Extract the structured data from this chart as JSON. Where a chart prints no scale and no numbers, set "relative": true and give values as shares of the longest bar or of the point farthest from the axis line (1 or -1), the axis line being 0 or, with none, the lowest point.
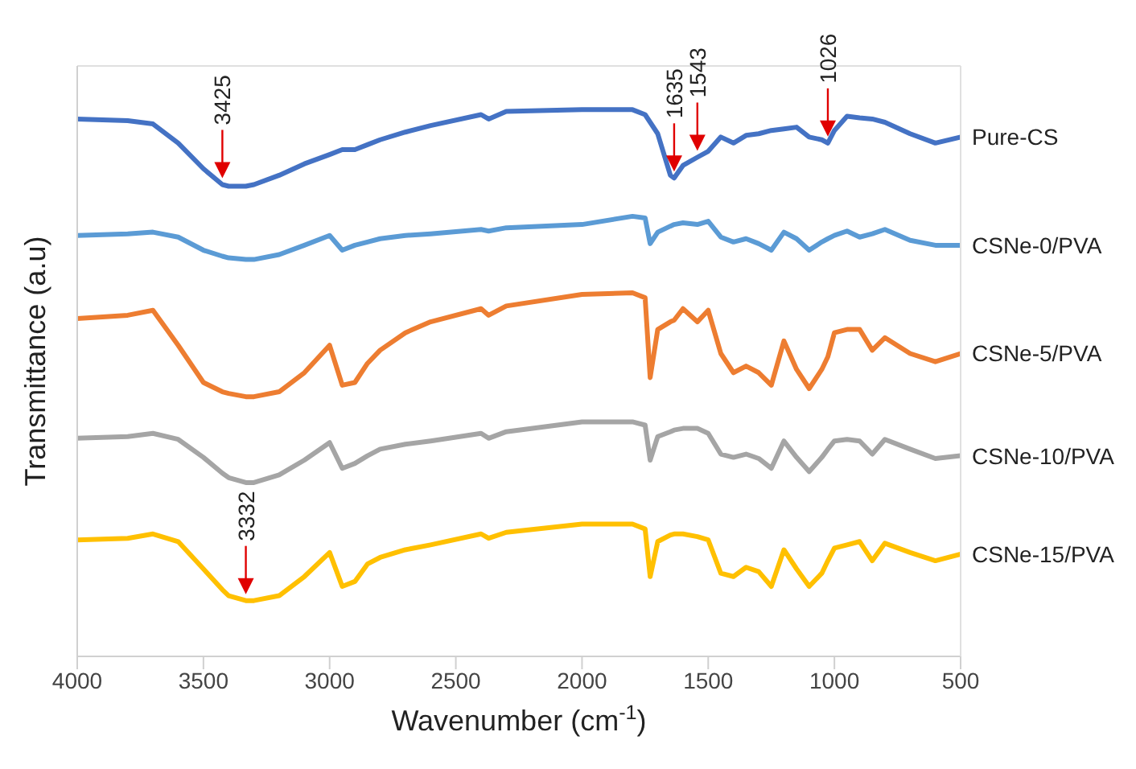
{
  "chart_data": {
    "type": "line",
    "relative": true,
    "xlabel": "Wavenumber (cm$^{-1}$)",
    "ylabel": "Transmittance (a.u)",
    "xlim": [
      4000,
      500
    ],
    "xticks": [
      4000,
      3500,
      3000,
      2500,
      2000,
      1500,
      1000,
      500
    ],
    "grid": false,
    "marker": "none",
    "x": [
      4000,
      3800,
      3700,
      3600,
      3500,
      3425,
      3400,
      3332,
      3300,
      3200,
      3100,
      3000,
      2950,
      2900,
      2850,
      2800,
      2700,
      2600,
      2400,
      2370,
      2300,
      2000,
      1800,
      1750,
      1730,
      1700,
      1650,
      1635,
      1600,
      1543,
      1500,
      1450,
      1400,
      1350,
      1300,
      1250,
      1200,
      1150,
      1100,
      1050,
      1026,
      1000,
      950,
      900,
      850,
      800,
      700,
      600,
      500
    ],
    "series": [
      {
        "name": "Pure-CS",
        "color": "#4472c4",
        "values": [
          0.983,
          0.98,
          0.974,
          0.939,
          0.892,
          0.863,
          0.86,
          0.86,
          0.863,
          0.88,
          0.901,
          0.918,
          0.927,
          0.927,
          0.936,
          0.945,
          0.959,
          0.971,
          0.991,
          0.983,
          0.997,
          1,
          1,
          0.991,
          0.977,
          0.956,
          0.88,
          0.875,
          0.898,
          0.913,
          0.924,
          0.95,
          0.939,
          0.953,
          0.956,
          0.962,
          0.965,
          0.968,
          0.95,
          0.945,
          0.939,
          0.962,
          0.988,
          0.985,
          0.983,
          0.977,
          0.956,
          0.939,
          0.95
        ]
      },
      {
        "name": "CSNe-0/PVA",
        "color": "#5b9bd5",
        "values": [
          0.77,
          0.773,
          0.776,
          0.767,
          0.743,
          0.732,
          0.729,
          0.726,
          0.726,
          0.735,
          0.752,
          0.77,
          0.743,
          0.752,
          0.758,
          0.764,
          0.77,
          0.773,
          0.781,
          0.778,
          0.784,
          0.79,
          0.805,
          0.802,
          0.755,
          0.776,
          0.787,
          0.79,
          0.793,
          0.79,
          0.796,
          0.767,
          0.758,
          0.764,
          0.755,
          0.743,
          0.776,
          0.764,
          0.743,
          0.758,
          0.764,
          0.77,
          0.778,
          0.767,
          0.773,
          0.781,
          0.761,
          0.752,
          0.752
        ]
      },
      {
        "name": "CSNe-5/PVA",
        "color": "#ed7d31",
        "values": [
          0.618,
          0.624,
          0.633,
          0.569,
          0.501,
          0.484,
          0.481,
          0.475,
          0.475,
          0.484,
          0.519,
          0.569,
          0.496,
          0.501,
          0.536,
          0.56,
          0.592,
          0.612,
          0.636,
          0.624,
          0.641,
          0.662,
          0.665,
          0.656,
          0.51,
          0.598,
          0.612,
          0.615,
          0.636,
          0.612,
          0.633,
          0.554,
          0.519,
          0.531,
          0.519,
          0.496,
          0.577,
          0.525,
          0.49,
          0.525,
          0.548,
          0.592,
          0.598,
          0.598,
          0.56,
          0.583,
          0.554,
          0.539,
          0.554
        ]
      },
      {
        "name": "CSNe-10/PVA",
        "color": "#a5a5a5",
        "values": [
          0.399,
          0.402,
          0.408,
          0.397,
          0.364,
          0.335,
          0.327,
          0.318,
          0.318,
          0.332,
          0.359,
          0.391,
          0.344,
          0.353,
          0.367,
          0.379,
          0.388,
          0.394,
          0.408,
          0.399,
          0.411,
          0.429,
          0.429,
          0.423,
          0.359,
          0.402,
          0.411,
          0.414,
          0.417,
          0.417,
          0.408,
          0.37,
          0.364,
          0.37,
          0.362,
          0.344,
          0.394,
          0.364,
          0.338,
          0.364,
          0.379,
          0.394,
          0.397,
          0.394,
          0.37,
          0.397,
          0.379,
          0.362,
          0.367
        ]
      },
      {
        "name": "CSNe-15/PVA",
        "color": "#ffc000",
        "values": [
          0.213,
          0.216,
          0.224,
          0.21,
          0.16,
          0.122,
          0.111,
          0.102,
          0.102,
          0.111,
          0.146,
          0.19,
          0.128,
          0.137,
          0.169,
          0.181,
          0.195,
          0.204,
          0.224,
          0.216,
          0.227,
          0.242,
          0.242,
          0.233,
          0.146,
          0.21,
          0.222,
          0.224,
          0.224,
          0.219,
          0.213,
          0.152,
          0.146,
          0.163,
          0.155,
          0.128,
          0.195,
          0.16,
          0.128,
          0.152,
          0.175,
          0.198,
          0.204,
          0.21,
          0.175,
          0.207,
          0.19,
          0.175,
          0.187
        ]
      }
    ],
    "annotations": [
      {
        "text": "3425",
        "x": 3425,
        "y": 0.863
      },
      {
        "text": "1635",
        "x": 1635,
        "y": 0.875
      },
      {
        "text": "1543",
        "x": 1543,
        "y": 0.913
      },
      {
        "text": "1026",
        "x": 1026,
        "y": 0.939
      },
      {
        "text": "3332",
        "x": 3332,
        "y": 0.102
      }
    ]
  }
}
